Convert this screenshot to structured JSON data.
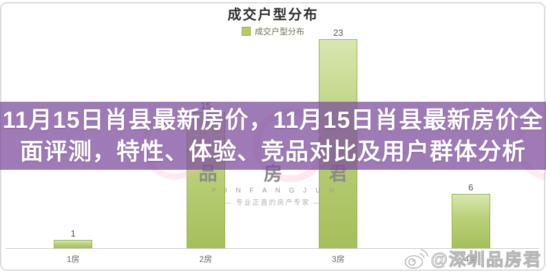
{
  "banner": {
    "line1": "11月15日肖县最新房价，11月15日肖县最新房价全",
    "line2": "面评测，特性、体验、竞品对比及用户群体分析",
    "bg_color": "#7c4d9e"
  },
  "chart_data": {
    "type": "bar",
    "title": "成交户型分布",
    "legend": [
      {
        "label": "成交户型分布",
        "swatch_color": "#b9cb5f"
      }
    ],
    "categories": [
      "1房",
      "2房",
      "3房",
      "4房"
    ],
    "values": [
      1,
      15,
      23,
      6
    ],
    "ylim": [
      0,
      25
    ],
    "bar_color": "#a5bf5c",
    "grid": false,
    "legend_position": "top-center",
    "xlabel": "",
    "ylabel": ""
  },
  "watermarks": {
    "center": {
      "title": "品 房 君",
      "latin": "P I N F A N G J U N",
      "slogan": "—  专业正直的房产专家  —"
    },
    "corner": {
      "icon": "weibo-icon",
      "text": "@深圳品房君"
    }
  }
}
